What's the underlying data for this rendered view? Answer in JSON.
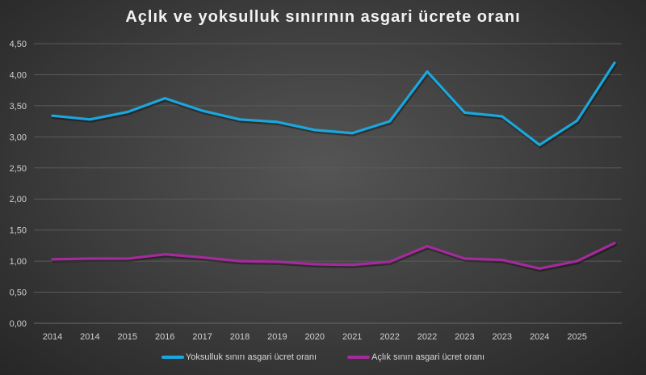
{
  "chart_data": {
    "type": "line",
    "title": "Açlık ve yoksulluk sınırının asgari ücrete oranı",
    "xlabel": "",
    "ylabel": "",
    "categories": [
      "2014",
      "2014",
      "2015",
      "2016",
      "2017",
      "2018",
      "2019",
      "2020",
      "2021",
      "2022",
      "2022",
      "2023",
      "2023",
      "2024",
      "2025",
      ""
    ],
    "ylim": [
      0,
      4.5
    ],
    "yticks": [
      "0,00",
      "0,50",
      "1,00",
      "1,50",
      "2,00",
      "2,50",
      "3,00",
      "3,50",
      "4,00",
      "4,50"
    ],
    "grid": true,
    "legend_position": "bottom",
    "series": [
      {
        "name": "Yoksulluk sınırı asgari ücret oranı",
        "color": "#1aa7dd",
        "values": [
          3.34,
          3.28,
          3.4,
          3.62,
          3.42,
          3.28,
          3.24,
          3.11,
          3.06,
          3.25,
          4.05,
          3.39,
          3.33,
          2.87,
          3.26,
          4.19
        ]
      },
      {
        "name": "Açlık sınırı asgari ücret oranı",
        "color": "#a52a9c",
        "values": [
          1.03,
          1.04,
          1.04,
          1.11,
          1.06,
          1.0,
          0.99,
          0.95,
          0.94,
          0.99,
          1.24,
          1.04,
          1.02,
          0.88,
          1.0,
          1.29
        ]
      }
    ]
  }
}
